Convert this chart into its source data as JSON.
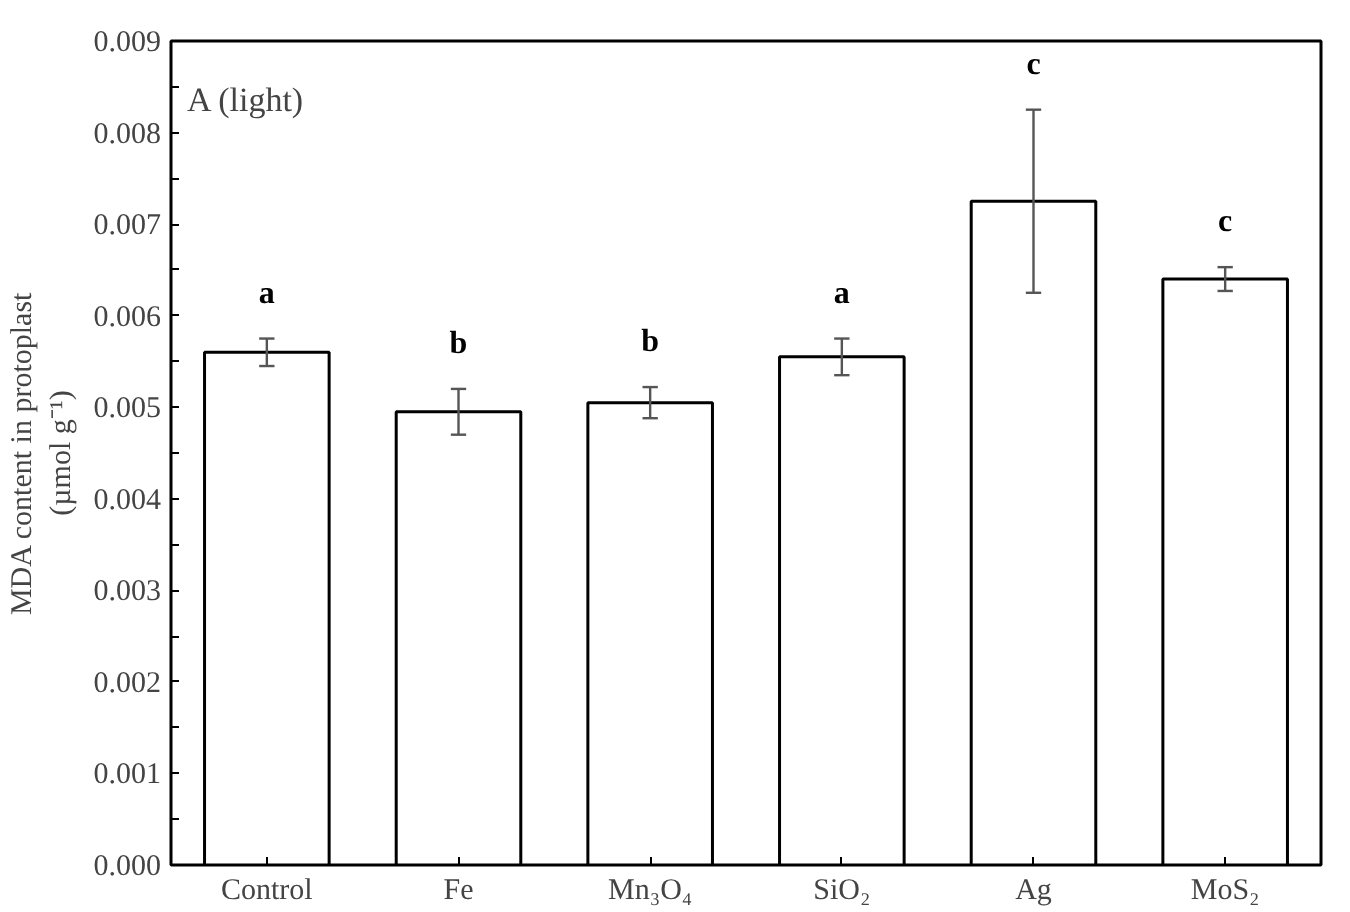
{
  "chart_data": {
    "type": "bar",
    "ylabel": "MDA content in protoplast\n(µmol g⁻¹)",
    "categories": [
      "Control",
      "Fe",
      "Mn₃O₄",
      "SiO₂",
      "Ag",
      "MoS₂"
    ],
    "values": [
      0.0056,
      0.00495,
      0.00505,
      0.00555,
      0.00725,
      0.0064
    ],
    "errors": [
      0.00015,
      0.00025,
      0.00017,
      0.0002,
      0.001,
      0.00013
    ],
    "color": "#ffffff",
    "ylim": [
      0,
      0.009
    ],
    "yticks": [
      {
        "value": 0,
        "label": "0.000"
      },
      {
        "value": 0.0005,
        "label": null
      },
      {
        "value": 0.001,
        "label": "0.001"
      },
      {
        "value": 0.0015,
        "label": null
      },
      {
        "value": 0.002,
        "label": "0.002"
      },
      {
        "value": 0.0025,
        "label": null
      },
      {
        "value": 0.003,
        "label": "0.003"
      },
      {
        "value": 0.0035,
        "label": null
      },
      {
        "value": 0.004,
        "label": "0.004"
      },
      {
        "value": 0.0045,
        "label": null
      },
      {
        "value": 0.005,
        "label": "0.005"
      },
      {
        "value": 0.0055,
        "label": null
      },
      {
        "value": 0.006,
        "label": "0.006"
      },
      {
        "value": 0.0065,
        "label": null
      },
      {
        "value": 0.007,
        "label": "0.007"
      },
      {
        "value": 0.0075,
        "label": null
      },
      {
        "value": 0.008,
        "label": "0.008"
      },
      {
        "value": 0.0085,
        "label": null
      },
      {
        "value": 0.009,
        "label": "0.009"
      }
    ],
    "grid": false,
    "annotations": [
      "A (light)",
      "a",
      "b",
      "b",
      "a",
      "c",
      "c"
    ]
  }
}
